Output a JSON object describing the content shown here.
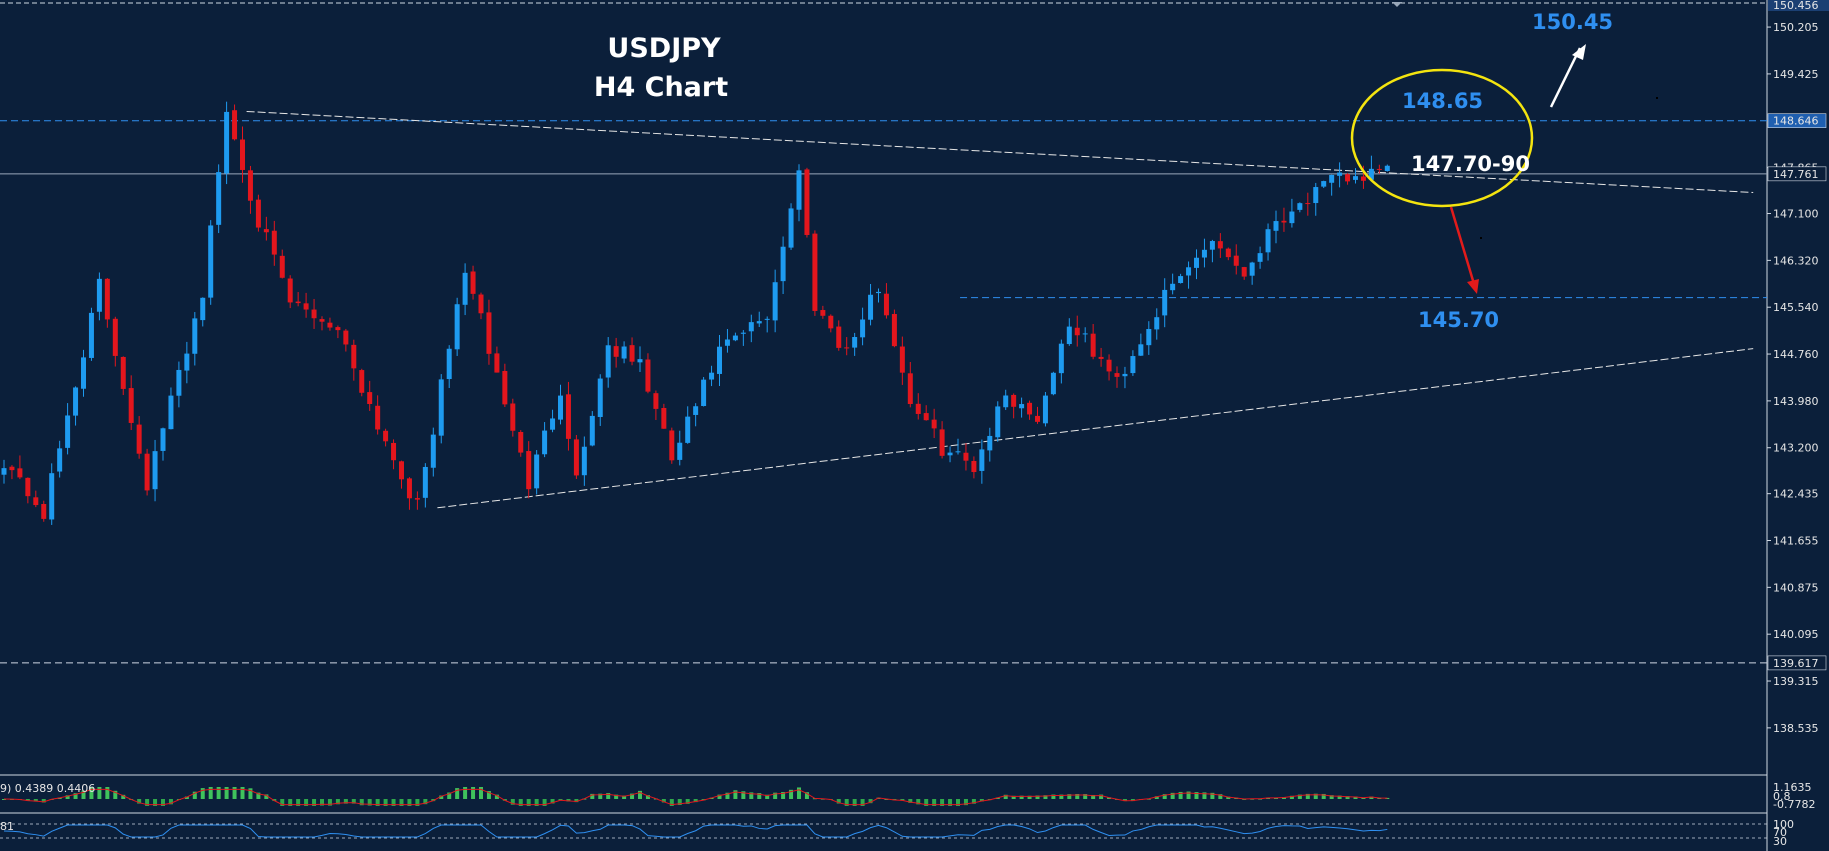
{
  "chart_data": {
    "type": "candlestick",
    "symbol": "USDJPY",
    "timeframe": "H4 Chart",
    "ylim": [
      137.8,
      150.456
    ],
    "price_ticks": [
      150.205,
      149.425,
      147.865,
      147.1,
      146.32,
      145.54,
      144.76,
      143.98,
      143.2,
      142.435,
      141.655,
      140.875,
      140.095,
      139.315,
      138.535
    ],
    "top_tick_label": "150.456",
    "axis_marks": [
      {
        "name": "resistance",
        "label": "148.646",
        "value": 148.646,
        "color": "#2f8ff0"
      },
      {
        "name": "current",
        "label": "147.761",
        "value": 147.761,
        "color": "#cfd8e3"
      },
      {
        "name": "support-low",
        "label": "139.617",
        "value": 139.617,
        "color": "#cfd8e3"
      }
    ],
    "levels": [
      {
        "name": "resistance",
        "value": 148.646,
        "style": "dashed",
        "color": "#2f8ff0"
      },
      {
        "name": "current",
        "value": 147.761,
        "style": "solid",
        "color": "#9aa8ba"
      },
      {
        "name": "support-low",
        "value": 139.617,
        "style": "dashed",
        "color": "#cfd8e3"
      }
    ],
    "support_level": {
      "value": 145.7,
      "from_index": 119
    },
    "annotations": {
      "target_up": "150.45",
      "resistance": "148.65",
      "current_zone": "147.70-90",
      "target_down": "145.70"
    },
    "trendlines": [
      {
        "name": "descending-resistance",
        "points": [
          [
            28,
            148.8
          ],
          [
            176,
            147.45
          ]
        ]
      },
      {
        "name": "ascending-support",
        "points": [
          [
            52,
            142.2
          ],
          [
            176,
            144.85
          ]
        ]
      }
    ],
    "anchors": [
      [
        0,
        143.0
      ],
      [
        5,
        142.1
      ],
      [
        12,
        145.9
      ],
      [
        18,
        142.6
      ],
      [
        25,
        145.8
      ],
      [
        28,
        148.8
      ],
      [
        32,
        147.0
      ],
      [
        36,
        145.6
      ],
      [
        42,
        145.2
      ],
      [
        47,
        143.6
      ],
      [
        52,
        142.2
      ],
      [
        58,
        146.2
      ],
      [
        62,
        144.4
      ],
      [
        66,
        142.6
      ],
      [
        70,
        144.2
      ],
      [
        72,
        142.7
      ],
      [
        76,
        144.9
      ],
      [
        80,
        144.6
      ],
      [
        84,
        143.0
      ],
      [
        90,
        144.8
      ],
      [
        96,
        145.4
      ],
      [
        100,
        147.8
      ],
      [
        102,
        145.6
      ],
      [
        106,
        144.8
      ],
      [
        110,
        145.9
      ],
      [
        114,
        144.0
      ],
      [
        118,
        143.2
      ],
      [
        122,
        142.9
      ],
      [
        126,
        144.1
      ],
      [
        130,
        143.7
      ],
      [
        134,
        145.3
      ],
      [
        140,
        144.3
      ],
      [
        146,
        145.7
      ],
      [
        152,
        146.7
      ],
      [
        156,
        146.1
      ],
      [
        160,
        147.0
      ],
      [
        168,
        147.7
      ],
      [
        174,
        147.76
      ]
    ],
    "candle_count": 175,
    "indicator_1": {
      "label": "9) 0.4389 0.4406",
      "ticks": [
        "1.1635",
        "0.8",
        "-0.7782"
      ]
    },
    "indicator_2": {
      "label": "81",
      "ticks": [
        "100",
        "70",
        "30"
      ]
    }
  }
}
